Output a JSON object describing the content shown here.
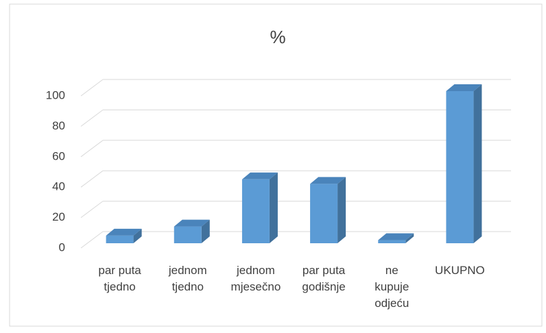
{
  "chart_data": {
    "type": "bar3d",
    "title": "%",
    "categories": [
      "par puta tjedno",
      "jednom tjedno",
      "jednom mjesečno",
      "par puta godišnje",
      "ne kupuje odjeću",
      "UKUPNO"
    ],
    "values": [
      5,
      11,
      42,
      39,
      2,
      100
    ],
    "color": "#5b9bd5",
    "ylim": [
      0,
      100
    ],
    "yticks": [
      0,
      20,
      40,
      60,
      80,
      100
    ],
    "grid": true
  }
}
